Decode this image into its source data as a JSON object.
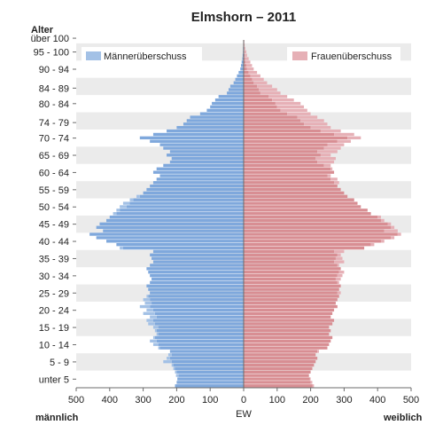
{
  "chart_data": {
    "type": "bar",
    "subtype": "population-pyramid",
    "title": "Elmshorn – 2011",
    "y_axis_title": "Alter",
    "xlabel": "EW",
    "left_label": "männlich",
    "right_label": "weiblich",
    "x_ticks": [
      500,
      400,
      300,
      200,
      100,
      0,
      100,
      200,
      300,
      400,
      500
    ],
    "xlim": [
      -500,
      500
    ],
    "age_labels": [
      {
        "text": "über 100",
        "age": 101
      },
      {
        "text": "95 - 100",
        "age": 97
      },
      {
        "text": "90 - 94",
        "age": 92
      },
      {
        "text": "84 - 89",
        "age": 86.5
      },
      {
        "text": "80 - 84",
        "age": 82
      },
      {
        "text": "74 - 79",
        "age": 76.5
      },
      {
        "text": "70 - 74",
        "age": 72
      },
      {
        "text": "65 - 69",
        "age": 67
      },
      {
        "text": "60 - 64",
        "age": 62
      },
      {
        "text": "55 - 59",
        "age": 57
      },
      {
        "text": "50 - 54",
        "age": 52
      },
      {
        "text": "45 - 49",
        "age": 47
      },
      {
        "text": "40 - 44",
        "age": 42
      },
      {
        "text": "35 - 39",
        "age": 37
      },
      {
        "text": "30 - 34",
        "age": 32
      },
      {
        "text": "25 - 29",
        "age": 27
      },
      {
        "text": "20 - 24",
        "age": 22
      },
      {
        "text": "15 - 19",
        "age": 17
      },
      {
        "text": "10 - 14",
        "age": 12
      },
      {
        "text": "5 - 9",
        "age": 7
      },
      {
        "text": "unter 5",
        "age": 2
      }
    ],
    "legend": [
      {
        "name": "Männerüberschuss",
        "color": "#a3c1e6"
      },
      {
        "name": "Frauenüberschuss",
        "color": "#e6b0b6"
      }
    ],
    "colors": {
      "male": "#7fa8dc",
      "female": "#d88e93",
      "male_surplus": "#a3c1e6",
      "female_surplus": "#e6b0b6",
      "band": "#ebebeb"
    },
    "series": [
      {
        "name": "männlich",
        "values_by_age_0_to_100": [
          205,
          200,
          198,
          202,
          205,
          210,
          215,
          240,
          230,
          225,
          220,
          255,
          270,
          280,
          270,
          260,
          265,
          270,
          285,
          290,
          280,
          300,
          290,
          310,
          295,
          300,
          290,
          280,
          285,
          290,
          280,
          275,
          280,
          285,
          290,
          280,
          270,
          275,
          280,
          270,
          370,
          380,
          410,
          440,
          460,
          420,
          440,
          430,
          410,
          400,
          390,
          380,
          370,
          360,
          340,
          320,
          300,
          290,
          280,
          270,
          260,
          250,
          270,
          260,
          240,
          220,
          215,
          230,
          220,
          240,
          250,
          280,
          310,
          270,
          230,
          200,
          180,
          170,
          160,
          130,
          110,
          100,
          95,
          85,
          75,
          50,
          45,
          40,
          30,
          25,
          20,
          15,
          10,
          8,
          6,
          4,
          3,
          2,
          2,
          1,
          1
        ]
      },
      {
        "name": "weiblich",
        "values_by_age_0_to_100": [
          210,
          205,
          200,
          195,
          200,
          205,
          210,
          215,
          220,
          215,
          225,
          250,
          255,
          260,
          265,
          255,
          260,
          255,
          265,
          270,
          260,
          265,
          270,
          280,
          275,
          280,
          285,
          290,
          285,
          290,
          285,
          290,
          295,
          300,
          290,
          285,
          300,
          295,
          290,
          300,
          360,
          390,
          420,
          450,
          470,
          460,
          450,
          440,
          420,
          410,
          380,
          370,
          350,
          340,
          330,
          310,
          300,
          290,
          280,
          285,
          280,
          260,
          270,
          265,
          260,
          270,
          275,
          260,
          280,
          290,
          300,
          320,
          350,
          330,
          290,
          260,
          250,
          240,
          220,
          200,
          190,
          180,
          170,
          150,
          130,
          110,
          100,
          85,
          70,
          60,
          50,
          40,
          30,
          25,
          20,
          15,
          10,
          8,
          5,
          3,
          2
        ]
      }
    ]
  }
}
